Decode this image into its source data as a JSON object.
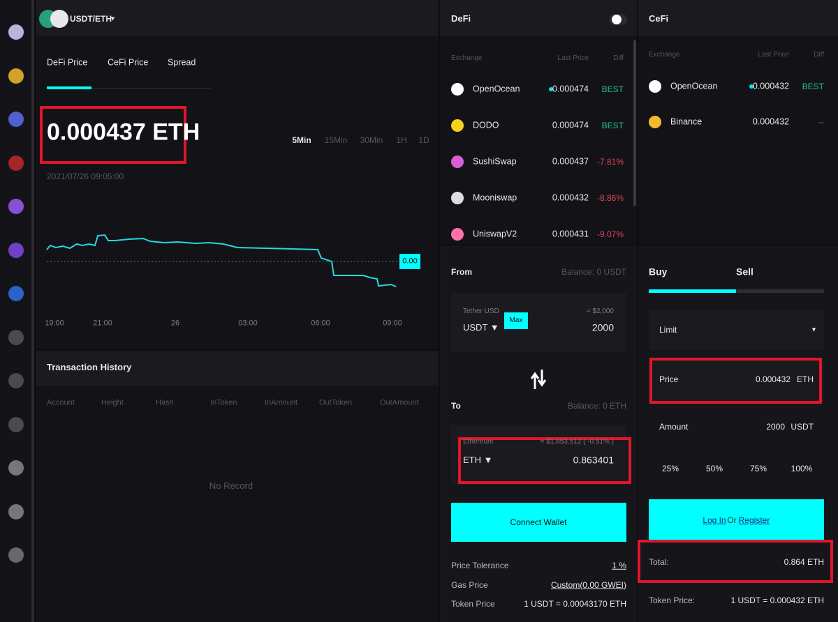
{
  "header": {
    "pair": "USDT/ETH",
    "caret": "▼"
  },
  "price_tabs": [
    "DeFi Price",
    "CeFi Price",
    "Spread"
  ],
  "price": "0.000437 ETH",
  "timeframes": [
    "5Min",
    "15Min",
    "30Min",
    "1H",
    "1D"
  ],
  "timestamp": "2021/07/26 09:05:00",
  "chart": {
    "current_tag": "0.00",
    "x_labels": [
      "19:00",
      "21:00",
      "26",
      "03:00",
      "06:00",
      "09:00"
    ]
  },
  "history": {
    "title": "Transaction History",
    "columns": [
      "Account",
      "Height",
      "Hash",
      "InToken",
      "InAmount",
      "OutToken",
      "OutAmount"
    ],
    "empty": "No Record"
  },
  "defi": {
    "title": "DeFi",
    "columns": [
      "Exchange",
      "Last Price",
      "Diff"
    ],
    "rows": [
      {
        "name": "OpenOcean",
        "price": "0.000474",
        "diff": "BEST",
        "diff_color": "#27c08a",
        "icon_color": "#ffffff"
      },
      {
        "name": "DODO",
        "price": "0.000474",
        "diff": "BEST",
        "diff_color": "#27c08a",
        "icon_color": "#f7d21a"
      },
      {
        "name": "SushiSwap",
        "price": "0.000437",
        "diff": "-7.81%",
        "diff_color": "#e0455a",
        "icon_color": "#d65fd6"
      },
      {
        "name": "Mooniswap",
        "price": "0.000432",
        "diff": "-8.86%",
        "diff_color": "#e0455a",
        "icon_color": "#dddddd"
      },
      {
        "name": "UniswapV2",
        "price": "0.000431",
        "diff": "-9.07%",
        "diff_color": "#e0455a",
        "icon_color": "#ff6fa8"
      }
    ]
  },
  "cefi": {
    "title": "CeFi",
    "columns": [
      "Exchange",
      "Last Price",
      "Diff"
    ],
    "rows": [
      {
        "name": "OpenOcean",
        "price": "0.000432",
        "diff": "BEST",
        "diff_color": "#27c08a",
        "icon_color": "#ffffff"
      },
      {
        "name": "Binance",
        "price": "0.000432",
        "diff": "--",
        "diff_color": "#777777",
        "icon_color": "#f3ba2f"
      }
    ]
  },
  "swap": {
    "from_label": "From",
    "from_balance": "Balance: 0 USDT",
    "from_token_name": "Tether USD",
    "from_token": "USDT ▼",
    "max": "Max",
    "from_usd": "≈ $2,000",
    "from_amount": "2000",
    "to_label": "To",
    "to_balance": "Balance: 0 ETH",
    "to_token_name": "Ethereum",
    "to_token": "ETH ▼",
    "to_usd": "≈ $1,853.512 ( -0.51% )",
    "to_amount": "0.863401",
    "connect": "Connect Wallet",
    "details": [
      {
        "label": "Price Tolerance",
        "value": "1 %"
      },
      {
        "label": "Gas Price",
        "value": "Custom(0.00 GWEI)"
      },
      {
        "label": "Token Price",
        "value": "1 USDT = 0.00043170 ETH"
      }
    ]
  },
  "trade": {
    "tabs": [
      "Buy",
      "Sell"
    ],
    "order_type": "Limit",
    "caret": "▼",
    "price_label": "Price",
    "price_value": "0.000432",
    "price_unit": "ETH",
    "amount_label": "Amount",
    "amount_value": "2000",
    "amount_unit": "USDT",
    "percents": [
      "25%",
      "50%",
      "75%",
      "100%"
    ],
    "login": "Log In",
    "or": "Or",
    "register": "Register",
    "total_label": "Total:",
    "total_value": "0.864 ETH",
    "token_price_label": "Token Price:",
    "token_price_value": "1 USDT = 0.000432 ETH"
  }
}
